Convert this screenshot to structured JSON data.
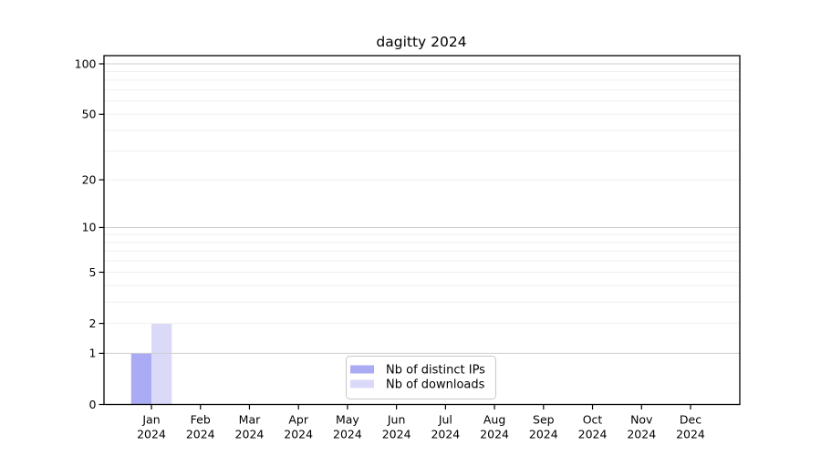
{
  "chart_data": {
    "type": "bar",
    "title": "dagitty 2024",
    "x_categories_line1": [
      "Jan",
      "Feb",
      "Mar",
      "Apr",
      "May",
      "Jun",
      "Jul",
      "Aug",
      "Sep",
      "Oct",
      "Nov",
      "Dec"
    ],
    "x_categories_line2": "2024",
    "series": [
      {
        "name": "Nb of distinct IPs",
        "color": "#ababf5",
        "values": [
          1,
          0,
          0,
          0,
          0,
          0,
          0,
          0,
          0,
          0,
          0,
          0
        ]
      },
      {
        "name": "Nb of downloads",
        "color": "#dadaf8",
        "values": [
          2,
          0,
          0,
          0,
          0,
          0,
          0,
          0,
          0,
          0,
          0,
          0
        ]
      }
    ],
    "yscale": "log1p",
    "ylim": [
      0,
      100
    ],
    "yticks": [
      0,
      1,
      2,
      5,
      10,
      20,
      50,
      100
    ],
    "grid_minor_values": [
      3,
      4,
      6,
      7,
      8,
      9,
      30,
      40,
      60,
      70,
      80,
      90
    ],
    "grid_on": true,
    "legend_position": "bottom-center-inside",
    "colors": {
      "axis": "#000000",
      "text": "#000000",
      "grid_decade": "#cccccc",
      "grid_minor": "#efefef",
      "legend_border": "#c8c8c8",
      "legend_background": "#ffffff",
      "plot_background": "#ffffff"
    }
  }
}
